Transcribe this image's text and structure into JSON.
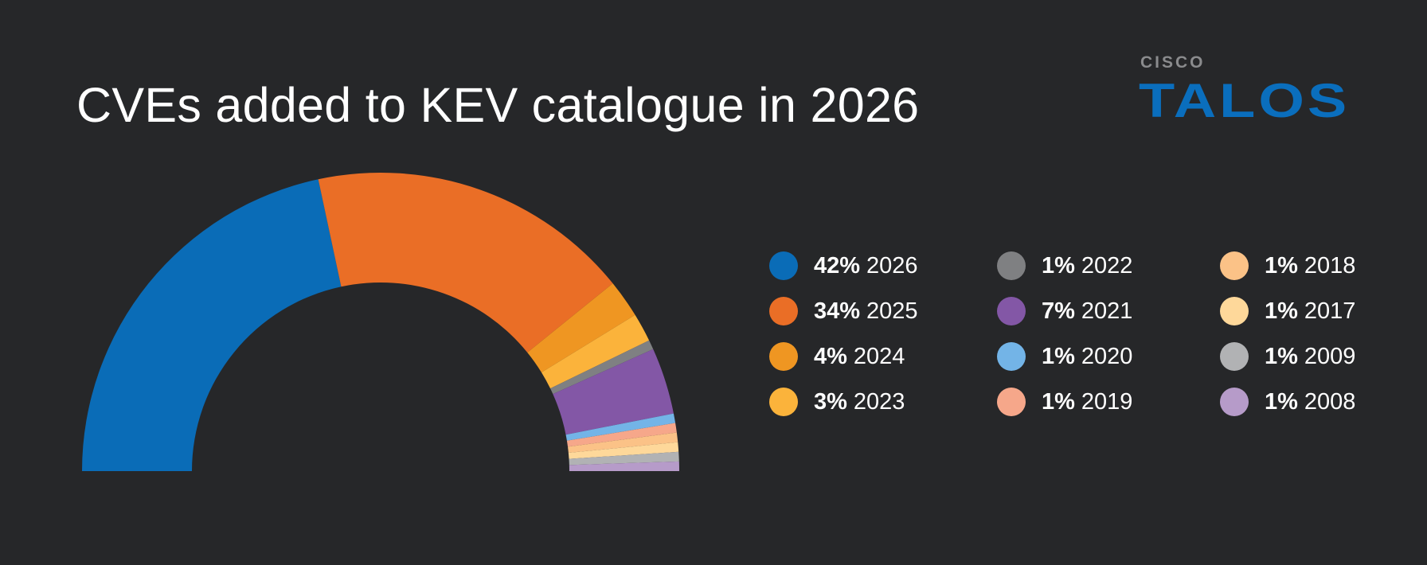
{
  "title": "CVEs added to KEV catalogue in 2026",
  "logo": {
    "small": "CISCO",
    "big": "TALOS"
  },
  "chart_data": {
    "type": "pie",
    "variant": "half-donut",
    "title": "CVEs added to KEV catalogue in 2026",
    "categories": [
      "2026",
      "2025",
      "2024",
      "2023",
      "2022",
      "2021",
      "2020",
      "2019",
      "2018",
      "2017",
      "2009",
      "2008"
    ],
    "values": [
      42,
      34,
      4,
      3,
      1,
      7,
      1,
      1,
      1,
      1,
      1,
      1
    ],
    "labels": [
      "42%",
      "34%",
      "4%",
      "3%",
      "1%",
      "7%",
      "1%",
      "1%",
      "1%",
      "1%",
      "1%",
      "1%"
    ],
    "colors": [
      "#0a6cb7",
      "#ea6e26",
      "#ef9622",
      "#fbb33b",
      "#7f8082",
      "#8357a6",
      "#73b4e7",
      "#f6a78a",
      "#fbc287",
      "#fed89a",
      "#b1b2b4",
      "#b69bc9"
    ],
    "legend_position": "right"
  }
}
